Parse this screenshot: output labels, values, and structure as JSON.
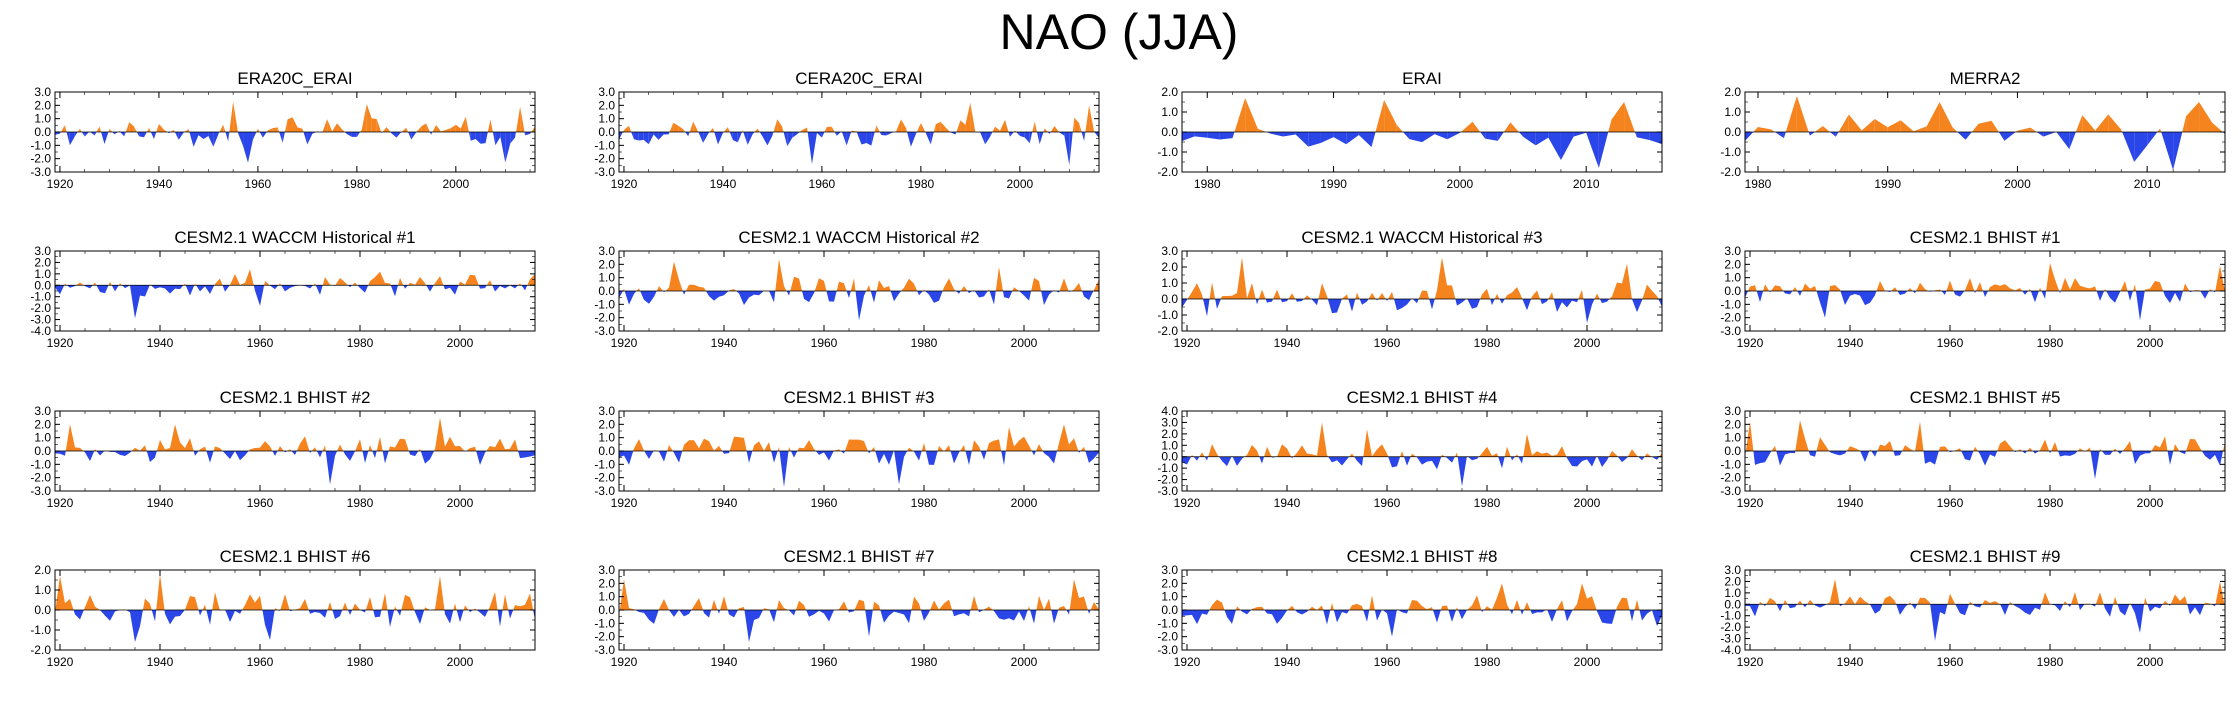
{
  "title": "NAO (JJA)",
  "colors": {
    "positive": "#F5841F",
    "negative": "#2A45E8",
    "axis": "#000000",
    "background": "#FFFFFF"
  },
  "chart_data": [
    {
      "type": "area",
      "title": "ERA20C_ERAI",
      "x_range": [
        1919,
        2016
      ],
      "xticks": [
        1920,
        1940,
        1960,
        1980,
        2000
      ],
      "yticks": [
        "3.0",
        "2.0",
        "1.0",
        "0.0",
        "-1.0",
        "-2.0",
        "-3.0"
      ],
      "ylim": [
        -3,
        3
      ],
      "seed": 11,
      "scale": 1.2,
      "values_note": "annual JJA NAO index",
      "peaks": [
        [
          1955,
          2.3
        ],
        [
          1958,
          -2.3
        ],
        [
          1982,
          2.1
        ],
        [
          2010,
          -2.3
        ],
        [
          2013,
          1.9
        ]
      ]
    },
    {
      "type": "area",
      "title": "CERA20C_ERAI",
      "x_range": [
        1919,
        2016
      ],
      "xticks": [
        1920,
        1940,
        1960,
        1980,
        2000
      ],
      "yticks": [
        "3.0",
        "2.0",
        "1.0",
        "0.0",
        "-1.0",
        "-2.0",
        "-3.0"
      ],
      "ylim": [
        -3,
        3
      ],
      "seed": 23,
      "scale": 1.1,
      "peaks": [
        [
          1958,
          -2.4
        ],
        [
          1990,
          2.2
        ],
        [
          2010,
          -2.5
        ],
        [
          2014,
          2.0
        ]
      ]
    },
    {
      "type": "area",
      "title": "ERAI",
      "x_range": [
        1978,
        2016
      ],
      "xticks": [
        1980,
        1990,
        2000,
        2010
      ],
      "yticks": [
        "2.0",
        "1.0",
        "0.0",
        "-1.0",
        "-2.0"
      ],
      "ylim": [
        -2,
        2
      ],
      "seed": 37,
      "scale": 0.9,
      "peaks": [
        [
          1983,
          1.7
        ],
        [
          1994,
          1.6
        ],
        [
          2008,
          -1.4
        ],
        [
          2011,
          -1.8
        ],
        [
          2013,
          1.5
        ]
      ]
    },
    {
      "type": "area",
      "title": "MERRA2",
      "x_range": [
        1979,
        2016
      ],
      "xticks": [
        1980,
        1990,
        2000,
        2010
      ],
      "yticks": [
        "2.0",
        "1.0",
        "0.0",
        "-1.0",
        "-2.0"
      ],
      "ylim": [
        -2,
        2
      ],
      "seed": 41,
      "scale": 0.9,
      "peaks": [
        [
          1983,
          1.8
        ],
        [
          1994,
          1.5
        ],
        [
          2009,
          -1.5
        ],
        [
          2012,
          -1.9
        ],
        [
          2014,
          1.5
        ]
      ]
    },
    {
      "type": "area",
      "title": "CESM2.1 WACCM Historical #1",
      "x_range": [
        1919,
        2015
      ],
      "xticks": [
        1920,
        1940,
        1960,
        1980,
        2000
      ],
      "yticks": [
        "3.0",
        "2.0",
        "1.0",
        "0.0",
        "-1.0",
        "-2.0",
        "-3.0",
        "-4.0"
      ],
      "ylim": [
        -4,
        3
      ],
      "seed": 53,
      "scale": 1.0,
      "peaks": [
        [
          1935,
          -2.9
        ],
        [
          1958,
          1.4
        ],
        [
          1960,
          -1.8
        ],
        [
          1984,
          1.2
        ]
      ]
    },
    {
      "type": "area",
      "title": "CESM2.1 WACCM Historical #2",
      "x_range": [
        1919,
        2015
      ],
      "xticks": [
        1920,
        1940,
        1960,
        1980,
        2000
      ],
      "yticks": [
        "3.0",
        "2.0",
        "1.0",
        "0.0",
        "-1.0",
        "-2.0",
        "-3.0"
      ],
      "ylim": [
        -3,
        3
      ],
      "seed": 67,
      "scale": 1.1,
      "peaks": [
        [
          1930,
          2.2
        ],
        [
          1951,
          2.4
        ],
        [
          1967,
          -2.2
        ],
        [
          1995,
          1.8
        ]
      ]
    },
    {
      "type": "area",
      "title": "CESM2.1 WACCM Historical #3",
      "x_range": [
        1919,
        2015
      ],
      "xticks": [
        1920,
        1940,
        1960,
        1980,
        2000
      ],
      "yticks": [
        "3.0",
        "2.0",
        "1.0",
        "0.0",
        "-1.0",
        "-2.0"
      ],
      "ylim": [
        -2,
        3
      ],
      "seed": 71,
      "scale": 1.1,
      "peaks": [
        [
          1931,
          2.6
        ],
        [
          1971,
          2.6
        ],
        [
          2000,
          -1.5
        ],
        [
          2008,
          2.2
        ]
      ]
    },
    {
      "type": "area",
      "title": "CESM2.1 BHIST #1",
      "x_range": [
        1919,
        2015
      ],
      "xticks": [
        1920,
        1940,
        1960,
        1980,
        2000
      ],
      "yticks": [
        "3.0",
        "2.0",
        "1.0",
        "0.0",
        "-1.0",
        "-2.0",
        "-3.0"
      ],
      "ylim": [
        -3,
        3
      ],
      "seed": 83,
      "scale": 1.1,
      "peaks": [
        [
          1935,
          -2.0
        ],
        [
          1980,
          2.1
        ],
        [
          1998,
          -2.2
        ],
        [
          2014,
          1.9
        ]
      ]
    },
    {
      "type": "area",
      "title": "CESM2.1 BHIST #2",
      "x_range": [
        1919,
        2015
      ],
      "xticks": [
        1920,
        1940,
        1960,
        1980,
        2000
      ],
      "yticks": [
        "3.0",
        "2.0",
        "1.0",
        "0.0",
        "-1.0",
        "-2.0",
        "-3.0"
      ],
      "ylim": [
        -3,
        3
      ],
      "seed": 97,
      "scale": 1.1,
      "peaks": [
        [
          1922,
          2.0
        ],
        [
          1943,
          2.0
        ],
        [
          1974,
          -2.5
        ],
        [
          1996,
          2.5
        ]
      ]
    },
    {
      "type": "area",
      "title": "CESM2.1 BHIST #3",
      "x_range": [
        1919,
        2015
      ],
      "xticks": [
        1920,
        1940,
        1960,
        1980,
        2000
      ],
      "yticks": [
        "3.0",
        "2.0",
        "1.0",
        "0.0",
        "-1.0",
        "-2.0",
        "-3.0"
      ],
      "ylim": [
        -3,
        3
      ],
      "seed": 103,
      "scale": 1.1,
      "peaks": [
        [
          1952,
          -2.7
        ],
        [
          1975,
          -2.5
        ],
        [
          1997,
          1.8
        ],
        [
          2008,
          2.0
        ]
      ]
    },
    {
      "type": "area",
      "title": "CESM2.1 BHIST #4",
      "x_range": [
        1919,
        2015
      ],
      "xticks": [
        1920,
        1940,
        1960,
        1980,
        2000
      ],
      "yticks": [
        "4.0",
        "3.0",
        "2.0",
        "1.0",
        "0.0",
        "-1.0",
        "-2.0",
        "-3.0"
      ],
      "ylim": [
        -3,
        4
      ],
      "seed": 113,
      "scale": 1.1,
      "peaks": [
        [
          1947,
          3.0
        ],
        [
          1956,
          2.4
        ],
        [
          1975,
          -2.6
        ],
        [
          1988,
          2.0
        ]
      ]
    },
    {
      "type": "area",
      "title": "CESM2.1 BHIST #5",
      "x_range": [
        1919,
        2015
      ],
      "xticks": [
        1920,
        1940,
        1960,
        1980,
        2000
      ],
      "yticks": [
        "3.0",
        "2.0",
        "1.0",
        "0.0",
        "-1.0",
        "-2.0",
        "-3.0"
      ],
      "ylim": [
        -3,
        3
      ],
      "seed": 127,
      "scale": 1.1,
      "peaks": [
        [
          1920,
          2.2
        ],
        [
          1930,
          2.3
        ],
        [
          1954,
          2.2
        ],
        [
          1989,
          -2.1
        ]
      ]
    },
    {
      "type": "area",
      "title": "CESM2.1 BHIST #6",
      "x_range": [
        1919,
        2015
      ],
      "xticks": [
        1920,
        1940,
        1960,
        1980,
        2000
      ],
      "yticks": [
        "2.0",
        "1.0",
        "0.0",
        "-1.0",
        "-2.0"
      ],
      "ylim": [
        -2,
        2
      ],
      "seed": 131,
      "scale": 0.9,
      "peaks": [
        [
          1920,
          1.7
        ],
        [
          1935,
          -1.6
        ],
        [
          1940,
          1.8
        ],
        [
          1962,
          -1.5
        ],
        [
          1996,
          1.7
        ]
      ]
    },
    {
      "type": "area",
      "title": "CESM2.1 BHIST #7",
      "x_range": [
        1919,
        2015
      ],
      "xticks": [
        1920,
        1940,
        1960,
        1980,
        2000
      ],
      "yticks": [
        "3.0",
        "2.0",
        "1.0",
        "0.0",
        "-1.0",
        "-2.0",
        "-3.0"
      ],
      "ylim": [
        -3,
        3
      ],
      "seed": 149,
      "scale": 1.1,
      "peaks": [
        [
          1920,
          2.3
        ],
        [
          1945,
          -2.4
        ],
        [
          1969,
          -2.0
        ],
        [
          2010,
          2.3
        ]
      ]
    },
    {
      "type": "area",
      "title": "CESM2.1 BHIST #8",
      "x_range": [
        1919,
        2015
      ],
      "xticks": [
        1920,
        1940,
        1960,
        1980,
        2000
      ],
      "yticks": [
        "3.0",
        "2.0",
        "1.0",
        "0.0",
        "-1.0",
        "-2.0",
        "-3.0"
      ],
      "ylim": [
        -3,
        3
      ],
      "seed": 157,
      "scale": 1.1,
      "peaks": [
        [
          1961,
          -2.0
        ],
        [
          1983,
          2.0
        ],
        [
          1999,
          2.0
        ],
        [
          2014,
          -1.2
        ]
      ]
    },
    {
      "type": "area",
      "title": "CESM2.1 BHIST #9",
      "x_range": [
        1919,
        2015
      ],
      "xticks": [
        1920,
        1940,
        1960,
        1980,
        2000
      ],
      "yticks": [
        "3.0",
        "2.0",
        "1.0",
        "0.0",
        "-1.0",
        "-2.0",
        "-3.0",
        "-4.0"
      ],
      "ylim": [
        -4,
        3
      ],
      "seed": 163,
      "scale": 1.1,
      "peaks": [
        [
          1937,
          2.2
        ],
        [
          1957,
          -3.2
        ],
        [
          1998,
          -2.5
        ],
        [
          2014,
          2.0
        ]
      ]
    }
  ]
}
